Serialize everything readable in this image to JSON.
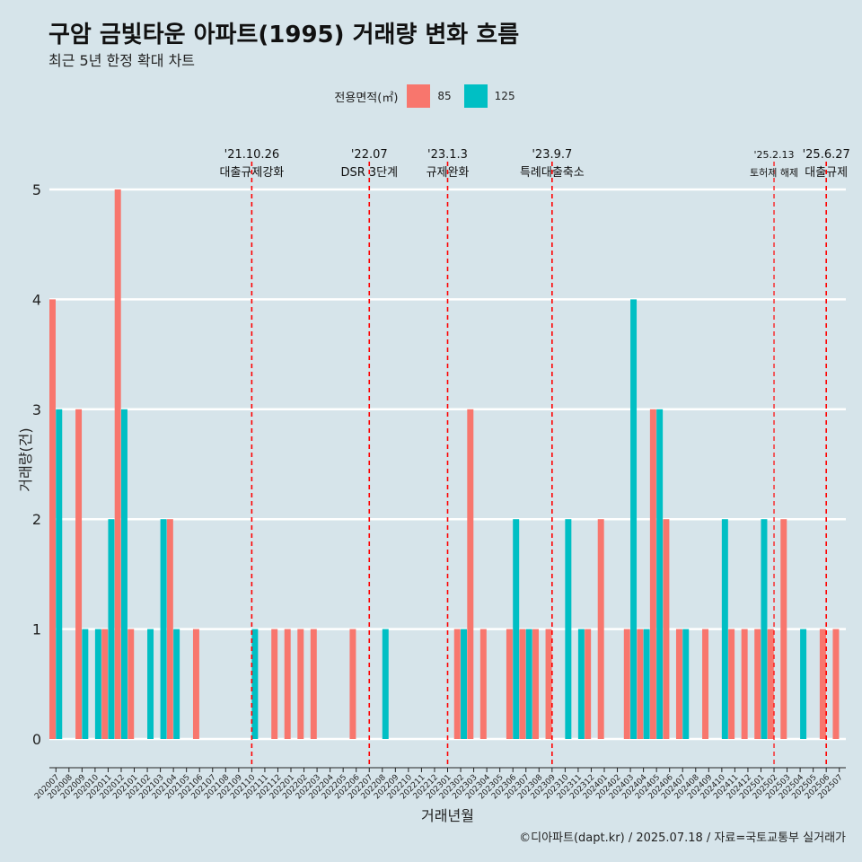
{
  "title": "구암 금빛타운 아파트(1995) 거래량 변화 흐름",
  "subtitle": "최근 5년 한정 확대 차트",
  "caption": "©디아파트(dapt.kr) / 2025.07.18 / 자료=국토교통부 실거래가",
  "colors": {
    "s85": "#f8766d",
    "s125": "#00bfc4",
    "bg": "#d6e4ea",
    "event": "#ff0000"
  },
  "chart_data": {
    "type": "bar",
    "title": "구암 금빛타운 아파트(1995) 거래량 변화 흐름",
    "xlabel": "거래년월",
    "ylabel": "거래량(건)",
    "ylim": [
      0,
      5
    ],
    "yticks": [
      0,
      1,
      2,
      3,
      4,
      5
    ],
    "legend_title": "전용면적(㎡)",
    "categories": [
      "202007",
      "202008",
      "202009",
      "202010",
      "202011",
      "202012",
      "202101",
      "202102",
      "202103",
      "202104",
      "202105",
      "202106",
      "202107",
      "202108",
      "202109",
      "202110",
      "202111",
      "202112",
      "202201",
      "202202",
      "202203",
      "202204",
      "202205",
      "202206",
      "202207",
      "202208",
      "202209",
      "202210",
      "202211",
      "202212",
      "202301",
      "202302",
      "202303",
      "202304",
      "202305",
      "202306",
      "202307",
      "202308",
      "202309",
      "202310",
      "202311",
      "202312",
      "202401",
      "202402",
      "202403",
      "202404",
      "202405",
      "202406",
      "202407",
      "202408",
      "202409",
      "202410",
      "202411",
      "202412",
      "202501",
      "202502",
      "202503",
      "202504",
      "202505",
      "202506",
      "202507"
    ],
    "series": [
      {
        "name": "85",
        "values": [
          4,
          0,
          3,
          0,
          1,
          5,
          1,
          0,
          0,
          2,
          0,
          1,
          0,
          0,
          0,
          0,
          0,
          1,
          1,
          1,
          1,
          0,
          0,
          1,
          0,
          0,
          0,
          0,
          0,
          0,
          0,
          1,
          3,
          1,
          0,
          1,
          1,
          1,
          1,
          0,
          0,
          1,
          2,
          0,
          1,
          1,
          3,
          2,
          1,
          0,
          1,
          0,
          1,
          1,
          1,
          1,
          2,
          0,
          0,
          1,
          1
        ]
      },
      {
        "name": "125",
        "values": [
          3,
          0,
          1,
          1,
          2,
          3,
          0,
          1,
          2,
          1,
          0,
          0,
          0,
          0,
          0,
          1,
          0,
          0,
          0,
          0,
          0,
          0,
          0,
          0,
          0,
          1,
          0,
          0,
          0,
          0,
          0,
          1,
          0,
          0,
          0,
          2,
          1,
          0,
          0,
          2,
          1,
          0,
          0,
          0,
          4,
          1,
          3,
          0,
          1,
          0,
          0,
          2,
          0,
          0,
          2,
          0,
          0,
          1,
          0,
          0,
          0
        ]
      }
    ],
    "events": [
      {
        "at": "202110",
        "date": "'21.10.26",
        "label": "대출규제강화"
      },
      {
        "at": "202207",
        "date": "'22.07",
        "label": "DSR 3단계"
      },
      {
        "at": "202301",
        "date": "'23.1.3",
        "label": "규제완화"
      },
      {
        "at": "202309",
        "date": "'23.9.7",
        "label": "특례대출축소"
      },
      {
        "at": "202502",
        "date": "'25.2.13",
        "label": "토허제 해제"
      },
      {
        "at": "202506",
        "date": "'25.6.27",
        "label": "대출규제"
      }
    ]
  }
}
